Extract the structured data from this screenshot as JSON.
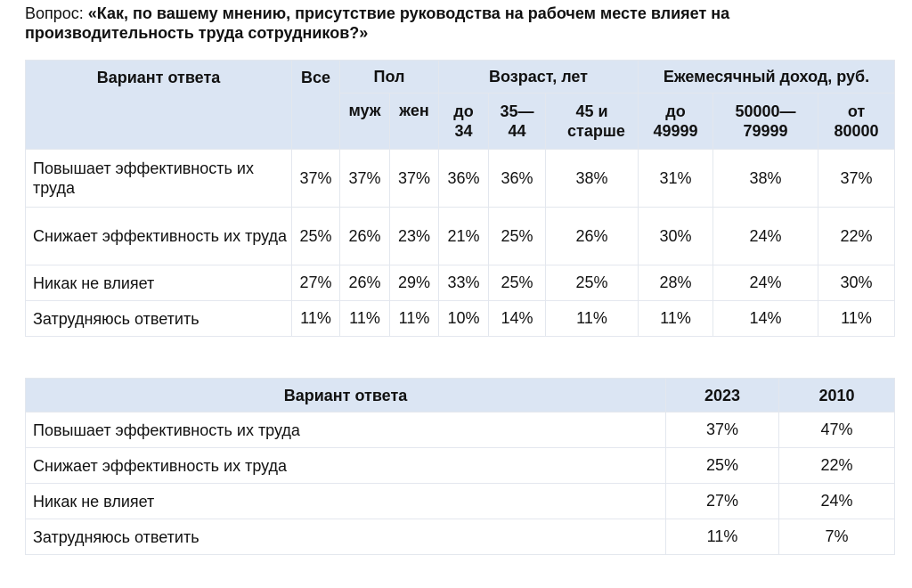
{
  "question": {
    "prefix": "Вопрос: ",
    "text": "«Как, по вашему мнению, присутствие руководства на рабочем месте влияет на производительность труда сотрудников?»"
  },
  "table1": {
    "headers": {
      "answer": "Вариант ответа",
      "all": "Все",
      "gender": "Пол",
      "age": "Возраст, лет",
      "income": "Ежемесячный доход, руб."
    },
    "subheaders": [
      "муж",
      "жен",
      "до 34",
      "35—44",
      "45 и старше",
      "до 49999",
      "50000—79999",
      "от 80000"
    ],
    "rows": [
      {
        "label": "Повышает эффективность их труда",
        "values": [
          "37%",
          "37%",
          "37%",
          "36%",
          "36%",
          "38%",
          "31%",
          "38%",
          "37%"
        ]
      },
      {
        "label": "Снижает эффективность их труда",
        "values": [
          "25%",
          "26%",
          "23%",
          "21%",
          "25%",
          "26%",
          "30%",
          "24%",
          "22%"
        ]
      },
      {
        "label": "Никак не влияет",
        "values": [
          "27%",
          "26%",
          "29%",
          "33%",
          "25%",
          "25%",
          "28%",
          "24%",
          "30%"
        ]
      },
      {
        "label": "Затрудняюсь ответить",
        "values": [
          "11%",
          "11%",
          "11%",
          "10%",
          "14%",
          "11%",
          "11%",
          "14%",
          "11%"
        ]
      }
    ]
  },
  "table2": {
    "headers": [
      "Вариант ответа",
      "2023",
      "2010"
    ],
    "rows": [
      {
        "label": "Повышает эффективность их труда",
        "values": [
          "37%",
          "47%"
        ]
      },
      {
        "label": "Снижает эффективность их труда",
        "values": [
          "25%",
          "22%"
        ]
      },
      {
        "label": "Никак не влияет",
        "values": [
          "27%",
          "24%"
        ]
      },
      {
        "label": "Затрудняюсь ответить",
        "values": [
          "11%",
          "7%"
        ]
      }
    ]
  },
  "colors": {
    "header_bg": "#dbe5f3",
    "border": "#e3e7ee",
    "text": "#111111"
  }
}
